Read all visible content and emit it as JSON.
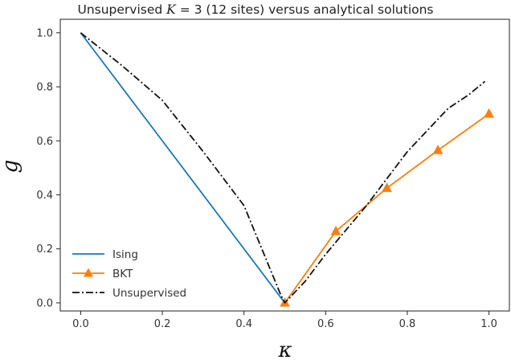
{
  "chart_data": {
    "type": "line",
    "title": "Unsupervised K = 3 (12 sites) versus analytical solutions",
    "title_parts": {
      "pre": "Unsupervised ",
      "var": "K",
      "post": " = 3 (12 sites) versus analytical solutions"
    },
    "xlabel": "κ",
    "ylabel": "g",
    "xlim": [
      -0.05,
      1.05
    ],
    "ylim": [
      -0.03,
      1.05
    ],
    "xticks": [
      0.0,
      0.2,
      0.4,
      0.6,
      0.8,
      1.0
    ],
    "xtick_labels": [
      "0.0",
      "0.2",
      "0.4",
      "0.6",
      "0.8",
      "1.0"
    ],
    "yticks": [
      0.0,
      0.2,
      0.4,
      0.6,
      0.8,
      1.0
    ],
    "ytick_labels": [
      "0.0",
      "0.2",
      "0.4",
      "0.6",
      "0.8",
      "1.0"
    ],
    "grid": false,
    "legend_position": "lower-left",
    "series": [
      {
        "name": "Ising",
        "color": "#1f77b4",
        "style": "solid",
        "marker": "none",
        "x": [
          0.0,
          0.5
        ],
        "y": [
          1.0,
          0.0
        ]
      },
      {
        "name": "BKT",
        "color": "#ff7f0e",
        "style": "solid",
        "marker": "triangle",
        "x": [
          0.5,
          0.625,
          0.75,
          0.875,
          1.0
        ],
        "y": [
          0.0,
          0.265,
          0.425,
          0.565,
          0.7
        ]
      },
      {
        "name": "Unsupervised",
        "color": "#111111",
        "style": "dashdot",
        "marker": "none",
        "x": [
          0.0,
          0.1,
          0.2,
          0.3,
          0.4,
          0.49,
          0.5,
          0.55,
          0.6,
          0.65,
          0.7,
          0.75,
          0.8,
          0.85,
          0.9,
          0.95,
          0.99
        ],
        "y": [
          1.0,
          0.88,
          0.75,
          0.56,
          0.36,
          0.03,
          0.0,
          0.08,
          0.18,
          0.27,
          0.36,
          0.46,
          0.56,
          0.64,
          0.72,
          0.77,
          0.82
        ]
      }
    ]
  }
}
